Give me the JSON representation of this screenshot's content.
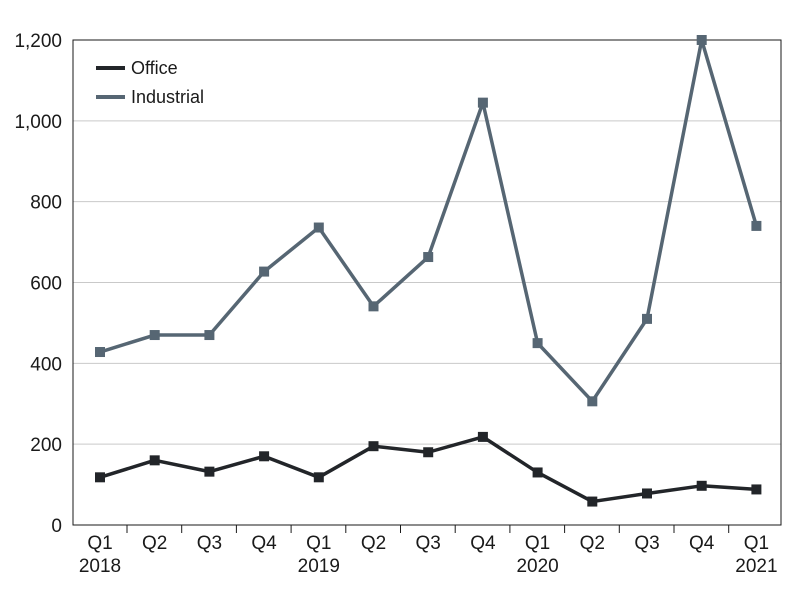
{
  "chart_data": {
    "type": "line",
    "title": "",
    "xlabel": "",
    "ylabel": "",
    "categories": [
      "Q1",
      "Q2",
      "Q3",
      "Q4",
      "Q1",
      "Q2",
      "Q3",
      "Q4",
      "Q1",
      "Q2",
      "Q3",
      "Q4",
      "Q1"
    ],
    "year_labels": [
      "2018",
      "",
      "",
      "",
      "2019",
      "",
      "",
      "",
      "2020",
      "",
      "",
      "",
      "2021"
    ],
    "ylim": [
      0,
      1200
    ],
    "yticks": [
      0,
      200,
      400,
      600,
      800,
      1000,
      1200
    ],
    "ytick_labels": [
      "0",
      "200",
      "400",
      "600",
      "800",
      "1,000",
      "1,200"
    ],
    "grid": true,
    "legend_position": "top-left",
    "series": [
      {
        "name": "Office",
        "color": "#222529",
        "values": [
          118,
          160,
          132,
          170,
          118,
          195,
          180,
          218,
          130,
          58,
          78,
          97,
          88
        ]
      },
      {
        "name": "Industrial",
        "color": "#566673",
        "values": [
          428,
          470,
          470,
          627,
          736,
          541,
          663,
          1045,
          450,
          306,
          510,
          1200,
          740
        ]
      }
    ]
  }
}
